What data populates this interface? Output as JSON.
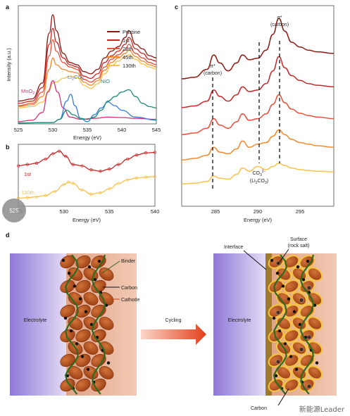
{
  "panels": {
    "a": {
      "letter": "a",
      "ylabel": "Intensity (a.u.)",
      "xlabel": "Energy (eV)",
      "xticks": [
        "525",
        "530",
        "535",
        "540",
        "545"
      ],
      "legend": [
        "Pristine",
        "1st",
        "20th",
        "45th",
        "130th"
      ],
      "refs": [
        "MnO",
        "Li",
        "CO",
        "NiO"
      ],
      "ref_subs": [
        "2",
        "2",
        "3"
      ]
    },
    "b": {
      "letter": "b",
      "xlabel": "Energy (eV)",
      "xticks": [
        "525",
        "530",
        "535",
        "540"
      ],
      "labels": [
        "1st",
        "130th"
      ]
    },
    "c": {
      "letter": "c",
      "xlabel": "Energy (eV)",
      "xticks": [
        "285",
        "290",
        "295"
      ],
      "pi_label": [
        "π*",
        "(carbon)"
      ],
      "sigma_label": [
        "σ*",
        "(carbon)"
      ],
      "co3_label": [
        "CO",
        "3",
        "2−",
        "(Li",
        "2",
        "CO",
        "3",
        ")"
      ]
    },
    "d": {
      "letter": "d",
      "labels": {
        "binder": "Binder",
        "carbon": "Carbon",
        "cathode": "Cathode",
        "electrolyte_left": "Electrolyte",
        "electrolyte_right": "Electrolyte",
        "cycling": "Cycling",
        "interface": "Interface",
        "surface": [
          "Surface",
          "(rock salt)"
        ],
        "carbon_bottom": "Carbon"
      }
    }
  },
  "colors": {
    "pristine": "#8b1a12",
    "c1": "#c62828",
    "c20": "#e8503a",
    "c45": "#f08a2c",
    "c130": "#f6c24a",
    "mno2": "#d6337a",
    "li2co3": "#3a7fd0",
    "nio": "#1f8a78",
    "electrolyte": "#b8a4e6",
    "cathode_bg": "#e8b49a",
    "particle": "#b8521f",
    "binder": "#2d6a1e",
    "interface": "#a07a2a",
    "rock_salt": "#f5c542"
  },
  "overlay": {
    "circle_label": "525"
  },
  "watermark": "新能源Leader",
  "chart_data": [
    {
      "panel": "a",
      "type": "line",
      "xlabel": "Energy (eV)",
      "ylabel": "Intensity (a.u.)",
      "xlim": [
        525,
        545
      ],
      "series": [
        {
          "name": "Pristine",
          "x": [
            525,
            527,
            528.5,
            529.5,
            530,
            530.5,
            531.5,
            532.5,
            533.5,
            534.5,
            535.5,
            536.5,
            537.5,
            538.5,
            539.5,
            540.5,
            541,
            542,
            543,
            544,
            545
          ],
          "y": [
            0.5,
            0.55,
            0.9,
            2.0,
            2.4,
            2.05,
            1.55,
            1.35,
            1.3,
            1.15,
            1.1,
            1.2,
            1.45,
            1.6,
            1.7,
            1.9,
            2.05,
            1.75,
            1.65,
            1.5,
            1.45
          ]
        },
        {
          "name": "1st",
          "x": [
            525,
            527,
            528.5,
            529.5,
            530,
            530.5,
            531.5,
            532.5,
            533.5,
            534.5,
            535.5,
            536.5,
            537.5,
            538.5,
            539.5,
            540.5,
            541,
            542,
            543,
            544,
            545
          ],
          "y": [
            0.45,
            0.5,
            0.8,
            1.75,
            2.1,
            1.8,
            1.45,
            1.3,
            1.25,
            1.05,
            1.0,
            1.1,
            1.35,
            1.5,
            1.6,
            1.75,
            1.9,
            1.65,
            1.55,
            1.42,
            1.38
          ]
        },
        {
          "name": "20th",
          "x": [
            525,
            527,
            528.5,
            529.5,
            530,
            530.5,
            531.5,
            532.5,
            533.5,
            534.5,
            535.5,
            536.5,
            537.5,
            538.5,
            539.5,
            540.5,
            541,
            542,
            543,
            544,
            545
          ],
          "y": [
            0.4,
            0.45,
            0.7,
            1.5,
            1.85,
            1.6,
            1.35,
            1.25,
            1.2,
            0.98,
            0.92,
            1.0,
            1.25,
            1.42,
            1.52,
            1.62,
            1.75,
            1.55,
            1.45,
            1.35,
            1.3
          ]
        },
        {
          "name": "45th",
          "x": [
            525,
            527,
            528.5,
            529.5,
            530,
            530.5,
            531.5,
            532.5,
            533.5,
            534.5,
            535.5,
            536.5,
            537.5,
            538.5,
            539.5,
            540.5,
            541,
            542,
            543,
            544,
            545
          ],
          "y": [
            0.38,
            0.42,
            0.6,
            1.2,
            1.45,
            1.3,
            1.2,
            1.15,
            1.12,
            0.92,
            0.85,
            0.95,
            1.18,
            1.35,
            1.45,
            1.55,
            1.62,
            1.48,
            1.38,
            1.3,
            1.25
          ]
        },
        {
          "name": "130th",
          "x": [
            525,
            527,
            528.5,
            529.5,
            530,
            530.5,
            531.5,
            532.5,
            533.5,
            534.5,
            535.5,
            536.5,
            537.5,
            538.5,
            539.5,
            540.5,
            541,
            542,
            543,
            544,
            545
          ],
          "y": [
            0.35,
            0.38,
            0.48,
            0.75,
            0.9,
            0.92,
            1.0,
            1.05,
            1.02,
            0.85,
            0.78,
            0.88,
            1.1,
            1.28,
            1.38,
            1.48,
            1.52,
            1.42,
            1.32,
            1.25,
            1.2
          ]
        },
        {
          "name": "MnO2",
          "x": [
            525,
            527,
            528.5,
            529.3,
            530,
            530.7,
            531.5,
            532.5,
            534,
            536,
            538,
            540,
            542,
            545
          ],
          "y": [
            0.05,
            0.08,
            0.25,
            0.7,
            0.95,
            0.7,
            0.35,
            0.15,
            0.1,
            0.12,
            0.15,
            0.14,
            0.12,
            0.1
          ]
        },
        {
          "name": "Li2CO3",
          "x": [
            525,
            530,
            531,
            532,
            532.6,
            533.2,
            534,
            535,
            536,
            537,
            538,
            539,
            540,
            542,
            545
          ],
          "y": [
            0.02,
            0.03,
            0.1,
            0.5,
            0.65,
            0.4,
            0.12,
            0.05,
            0.2,
            0.35,
            0.48,
            0.4,
            0.3,
            0.15,
            0.08
          ]
        },
        {
          "name": "NiO",
          "x": [
            525,
            530,
            531,
            532,
            533,
            534,
            535,
            536,
            537,
            538,
            539,
            540,
            541,
            542,
            543,
            544,
            545
          ],
          "y": [
            0.02,
            0.03,
            0.1,
            0.3,
            0.2,
            0.12,
            0.1,
            0.15,
            0.3,
            0.5,
            0.6,
            0.7,
            0.75,
            0.6,
            0.45,
            0.38,
            0.35
          ]
        }
      ]
    },
    {
      "panel": "b",
      "type": "line",
      "xlabel": "Energy (eV)",
      "xlim": [
        525,
        540
      ],
      "series": [
        {
          "name": "1st",
          "x": [
            525,
            526,
            527,
            528,
            528.8,
            529.5,
            530.2,
            531,
            532,
            533,
            534,
            535,
            536,
            537,
            538,
            539,
            540
          ],
          "y": [
            1.5,
            1.55,
            1.6,
            1.75,
            1.95,
            2.05,
            1.85,
            1.55,
            1.5,
            1.35,
            1.3,
            1.38,
            1.55,
            1.75,
            1.9,
            1.98,
            2.0
          ]
        },
        {
          "name": "130th",
          "x": [
            525,
            526,
            527,
            528,
            529,
            530,
            530.5,
            531,
            532,
            533,
            534,
            535,
            536,
            537,
            538,
            539,
            540
          ],
          "y": [
            0.3,
            0.32,
            0.35,
            0.4,
            0.55,
            0.8,
            0.9,
            0.85,
            0.6,
            0.45,
            0.5,
            0.65,
            0.85,
            0.98,
            1.05,
            1.08,
            1.1
          ]
        }
      ]
    },
    {
      "panel": "c",
      "type": "line",
      "xlabel": "Energy (eV)",
      "xlim": [
        281,
        299
      ],
      "series": [
        {
          "name": "Pristine",
          "x": [
            281,
            282.5,
            284,
            284.8,
            285.5,
            286.5,
            287.5,
            288.2,
            289,
            290,
            291,
            291.8,
            292.5,
            293.2,
            294,
            295,
            296,
            297,
            299
          ],
          "y": [
            4.3,
            4.35,
            4.6,
            5.05,
            4.8,
            4.55,
            4.8,
            5.05,
            4.9,
            4.95,
            5.2,
            5.7,
            6.2,
            5.8,
            5.45,
            5.3,
            5.2,
            5.15,
            5.1
          ]
        },
        {
          "name": "1st",
          "x": [
            281,
            282.5,
            284,
            284.8,
            285.5,
            286.5,
            287.5,
            288.2,
            289,
            290,
            291,
            291.8,
            292.5,
            293.2,
            294,
            295,
            296,
            297,
            299
          ],
          "y": [
            3.4,
            3.45,
            3.6,
            3.95,
            3.75,
            3.6,
            3.8,
            4.05,
            3.9,
            3.95,
            4.15,
            4.55,
            5.0,
            4.65,
            4.4,
            4.25,
            4.15,
            4.1,
            4.05
          ]
        },
        {
          "name": "20th",
          "x": [
            281,
            282.5,
            284,
            284.8,
            285.5,
            286.5,
            287.5,
            288.2,
            289,
            290,
            291,
            291.8,
            292.5,
            293.2,
            294,
            295,
            296,
            297,
            299
          ],
          "y": [
            2.55,
            2.6,
            2.75,
            3.05,
            2.85,
            2.75,
            2.95,
            3.2,
            3.0,
            3.05,
            3.2,
            3.5,
            3.8,
            3.55,
            3.35,
            3.22,
            3.15,
            3.1,
            3.05
          ]
        },
        {
          "name": "45th",
          "x": [
            281,
            282.5,
            284,
            284.8,
            285.5,
            286.5,
            287.5,
            288.2,
            289,
            290,
            291,
            291.8,
            292.5,
            293.2,
            294,
            295,
            296,
            297,
            299
          ],
          "y": [
            1.75,
            1.8,
            1.9,
            2.15,
            2.0,
            1.95,
            2.1,
            2.35,
            2.15,
            2.25,
            2.3,
            2.5,
            2.7,
            2.55,
            2.4,
            2.3,
            2.25,
            2.2,
            2.15
          ]
        },
        {
          "name": "130th",
          "x": [
            281,
            282.5,
            284,
            284.8,
            285.5,
            286.5,
            287.5,
            288.2,
            289,
            290,
            291,
            291.8,
            292.5,
            293.2,
            294,
            295,
            296,
            297,
            299
          ],
          "y": [
            1.0,
            1.02,
            1.08,
            1.25,
            1.18,
            1.15,
            1.3,
            1.5,
            1.4,
            1.55,
            1.45,
            1.55,
            1.65,
            1.58,
            1.5,
            1.45,
            1.42,
            1.4,
            1.38
          ]
        }
      ],
      "annotations": [
        {
          "text": "π* (carbon)",
          "x": 285
        },
        {
          "text": "σ* (carbon)",
          "x": 292.6
        },
        {
          "text": "CO3 2− (Li2CO3)",
          "x": 290.1
        }
      ]
    }
  ]
}
